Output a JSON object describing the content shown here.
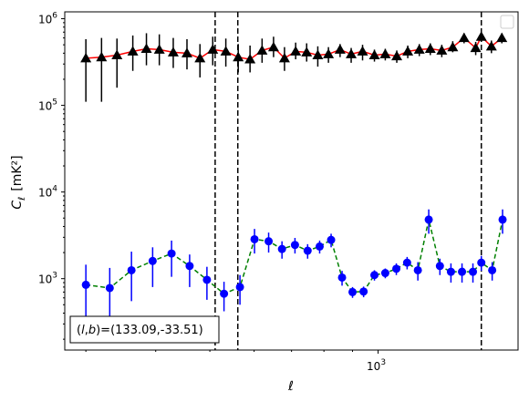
{
  "chart_data": {
    "type": "scatter",
    "xlabel": "ℓ",
    "ylabel_main": "C",
    "ylabel_sub": "ℓ",
    "ylabel_unit": "[mK²]",
    "x_scale": "log",
    "y_scale": "log",
    "xlim": [
      275,
      1780
    ],
    "ylim": [
      150,
      1200000
    ],
    "x_tick_labels": [
      {
        "value": 1000,
        "base": "10",
        "exp": "3"
      }
    ],
    "y_tick_labels": [
      {
        "value": 1000,
        "base": "10",
        "exp": "3"
      },
      {
        "value": 10000,
        "base": "10",
        "exp": "4"
      },
      {
        "value": 100000,
        "base": "10",
        "exp": "5"
      },
      {
        "value": 1000000,
        "base": "10",
        "exp": "6"
      }
    ],
    "annotation": "(l, b)=(133.09,-33.51)",
    "annotation_parts": {
      "open": "(",
      "l": "l",
      "sep": ",",
      "b": "b",
      "close": ")=(133.09,-33.51)"
    },
    "legend": {
      "position": "top-right",
      "entries": []
    },
    "vlines": [
      511,
      561,
      1530
    ],
    "series": [
      {
        "marker": "triangle",
        "color": "#000000",
        "line_color": "#ff0000",
        "line_style": "solid",
        "x": [
          300,
          320,
          341,
          364,
          385,
          406,
          430,
          455,
          480,
          506,
          534,
          562,
          590,
          620,
          650,
          680,
          712,
          745,
          780,
          815,
          855,
          895,
          938,
          985,
          1030,
          1080,
          1130,
          1185,
          1240,
          1300,
          1360,
          1425,
          1495,
          1530,
          1595,
          1665
        ],
        "y": [
          350000,
          360000,
          380000,
          420000,
          450000,
          440000,
          410000,
          400000,
          350000,
          440000,
          420000,
          360000,
          340000,
          430000,
          470000,
          350000,
          420000,
          410000,
          380000,
          390000,
          440000,
          390000,
          420000,
          380000,
          390000,
          370000,
          420000,
          440000,
          450000,
          430000,
          470000,
          600000,
          460000,
          620000,
          480000,
          600000
        ],
        "yerr": [
          [
            240000,
            230000
          ],
          [
            250000,
            240000
          ],
          [
            220000,
            210000
          ],
          [
            170000,
            220000
          ],
          [
            160000,
            230000
          ],
          [
            150000,
            220000
          ],
          [
            140000,
            190000
          ],
          [
            140000,
            180000
          ],
          [
            140000,
            160000
          ],
          [
            150000,
            180000
          ],
          [
            140000,
            170000
          ],
          [
            120000,
            150000
          ],
          [
            100000,
            150000
          ],
          [
            120000,
            160000
          ],
          [
            110000,
            150000
          ],
          [
            100000,
            120000
          ],
          [
            80000,
            110000
          ],
          [
            90000,
            110000
          ],
          [
            100000,
            100000
          ],
          [
            80000,
            80000
          ],
          [
            80000,
            70000
          ],
          [
            80000,
            70000
          ],
          [
            90000,
            80000
          ],
          [
            60000,
            60000
          ],
          [
            60000,
            60000
          ],
          [
            60000,
            60000
          ],
          [
            70000,
            70000
          ],
          [
            70000,
            70000
          ],
          [
            70000,
            70000
          ],
          [
            70000,
            70000
          ],
          [
            60000,
            80000
          ],
          [
            80000,
            80000
          ],
          [
            80000,
            80000
          ],
          [
            80000,
            80000
          ],
          [
            80000,
            80000
          ],
          [
            80000,
            80000
          ]
        ]
      },
      {
        "marker": "circle",
        "color": "#0000ff",
        "line_color": "#008000",
        "line_style": "dashed",
        "x": [
          300,
          331,
          362,
          395,
          427,
          460,
          494,
          530,
          566,
          601,
          637,
          673,
          710,
          748,
          786,
          824,
          862,
          900,
          942,
          985,
          1030,
          1078,
          1127,
          1178,
          1232,
          1290,
          1350,
          1413,
          1478,
          1530,
          1600,
          1670
        ],
        "y": [
          850,
          780,
          1250,
          1600,
          1950,
          1400,
          970,
          670,
          800,
          2850,
          2700,
          2200,
          2450,
          2100,
          2350,
          2800,
          1030,
          700,
          710,
          1100,
          1160,
          1300,
          1530,
          1250,
          4800,
          1400,
          1200,
          1200,
          1200,
          1530,
          1250,
          4800
        ],
        "yerr": [
          [
            500,
            600
          ],
          [
            450,
            550
          ],
          [
            700,
            800
          ],
          [
            800,
            700
          ],
          [
            900,
            800
          ],
          [
            600,
            500
          ],
          [
            400,
            400
          ],
          [
            250,
            250
          ],
          [
            300,
            300
          ],
          [
            900,
            900
          ],
          [
            700,
            700
          ],
          [
            500,
            500
          ],
          [
            500,
            500
          ],
          [
            400,
            400
          ],
          [
            400,
            400
          ],
          [
            500,
            500
          ],
          [
            200,
            200
          ],
          [
            100,
            100
          ],
          [
            100,
            100
          ],
          [
            150,
            150
          ],
          [
            150,
            150
          ],
          [
            200,
            200
          ],
          [
            250,
            250
          ],
          [
            300,
            300
          ],
          [
            1500,
            1500
          ],
          [
            300,
            300
          ],
          [
            300,
            300
          ],
          [
            300,
            300
          ],
          [
            300,
            300
          ],
          [
            300,
            300
          ],
          [
            300,
            300
          ],
          [
            1500,
            1500
          ]
        ]
      }
    ]
  }
}
